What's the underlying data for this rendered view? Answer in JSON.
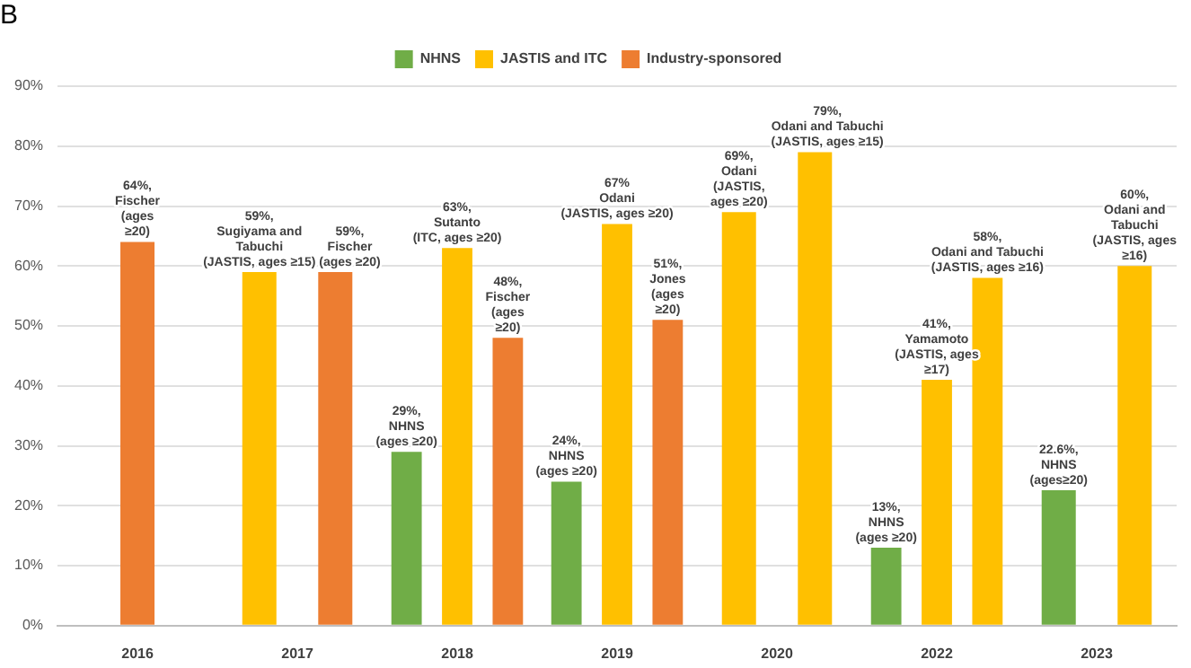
{
  "chart_data": {
    "type": "bar",
    "title": "B",
    "categories": [
      "2016",
      "2017",
      "2018",
      "2019",
      "2020",
      "2022",
      "2023"
    ],
    "series": [
      {
        "name": "NHNS",
        "color": "#70ad47",
        "values": [
          null,
          null,
          29,
          24,
          null,
          13,
          22.6
        ],
        "value_labels": [
          null,
          null,
          "29%,\nNHNS\n(ages ≥20)",
          "24%,\nNHNS\n(ages ≥20)",
          null,
          "13%,\nNHNS\n(ages ≥20)",
          "22.6%,\nNHNS\n(ages≥20)"
        ]
      },
      {
        "name": "JASTIS and ITC",
        "color": "#ffc000",
        "values": [
          null,
          59,
          63,
          67,
          69,
          41,
          60
        ],
        "value_labels": [
          null,
          "59%,\nSugiyama and\nTabuchi\n(JASTIS, ages ≥15)",
          "63%,\nSutanto\n(ITC, ages ≥20)",
          "67%\nOdani\n(JASTIS, ages ≥20)",
          "69%,\nOdani\n(JASTIS,\nages ≥20)",
          "41%,\nYamamoto\n(JASTIS, ages\n≥17)",
          "60%,\nOdani and\nTabuchi\n(JASTIS, ages\n≥16)"
        ]
      },
      {
        "color": "#ffc000",
        "values": [
          null,
          null,
          null,
          null,
          79,
          58,
          null
        ],
        "value_labels": [
          null,
          null,
          null,
          null,
          "79%,\nOdani and Tabuchi\n(JASTIS, ages ≥15)",
          "58%,\nOdani and Tabuchi\n(JASTIS, ages ≥16)",
          null
        ]
      },
      {
        "name": "Industry-sponsored",
        "color": "#ed7d31",
        "values": [
          64,
          59,
          48,
          51,
          null,
          null,
          null
        ],
        "value_labels": [
          "64%,\nFischer\n(ages\n≥20)",
          "59%,\nFischer\n(ages ≥20)",
          "48%,\nFischer\n(ages\n≥20)",
          "51%,\nJones\n(ages\n≥20)",
          null,
          null,
          null
        ]
      }
    ],
    "ylim": [
      0,
      90
    ],
    "yticks": [
      {
        "value": 0,
        "label": "0%"
      },
      {
        "value": 10,
        "label": "10%"
      },
      {
        "value": 20,
        "label": "20%"
      },
      {
        "value": 30,
        "label": "30%"
      },
      {
        "value": 40,
        "label": "40%"
      },
      {
        "value": 50,
        "label": "50%"
      },
      {
        "value": 60,
        "label": "60%"
      },
      {
        "value": 70,
        "label": "70%"
      },
      {
        "value": 80,
        "label": "80%"
      },
      {
        "value": 90,
        "label": "90%"
      }
    ],
    "grid": "y",
    "legend": "top"
  }
}
